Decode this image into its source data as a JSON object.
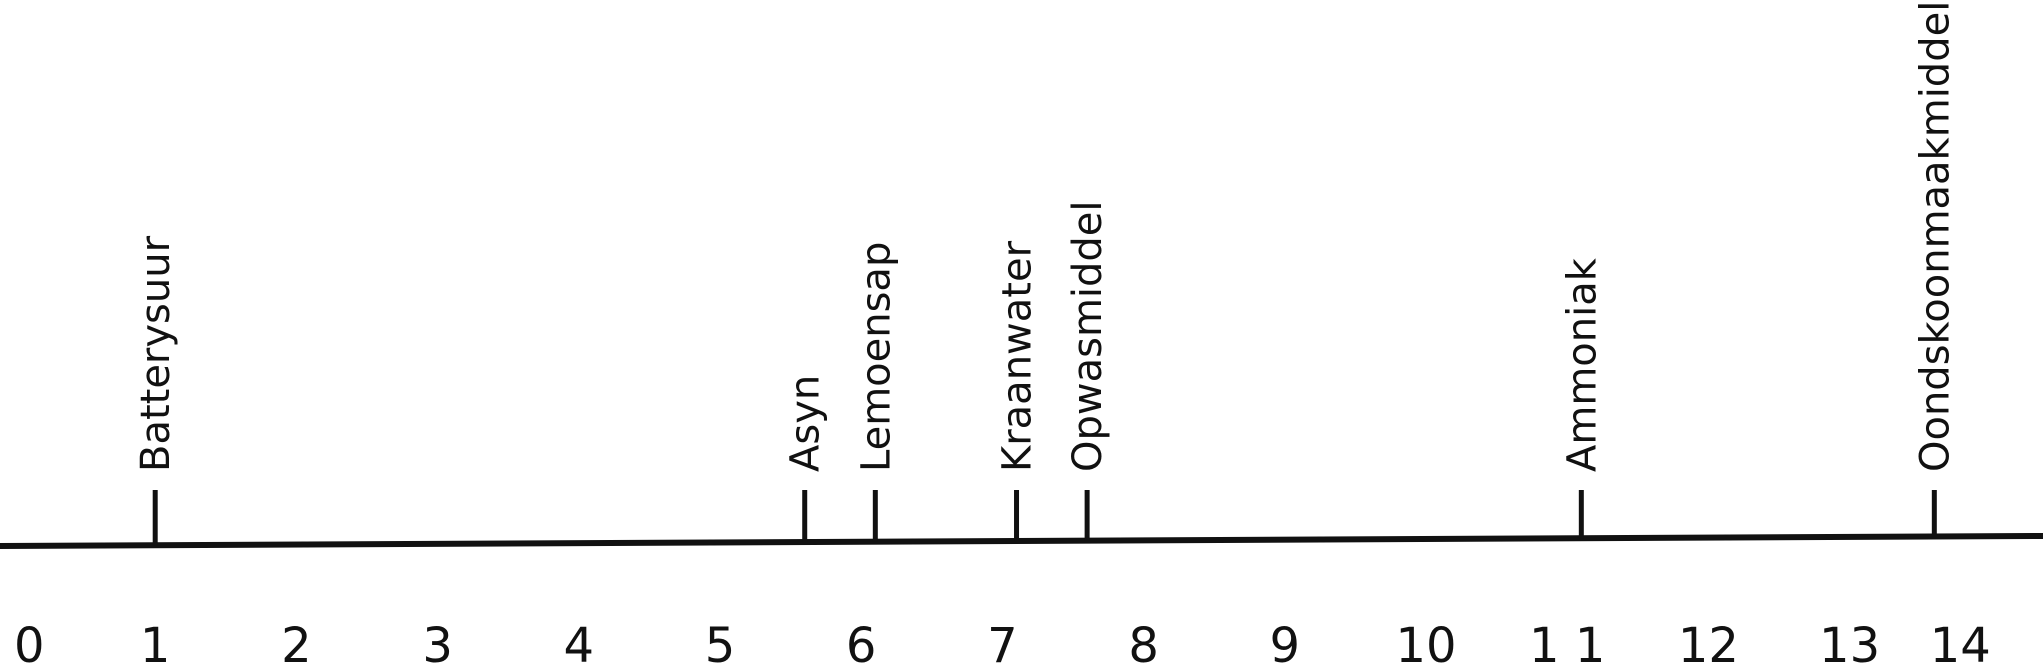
{
  "scale": {
    "min": 0,
    "max": 14,
    "ticks": [
      {
        "value": 0,
        "label": "0"
      },
      {
        "value": 1,
        "label": "1"
      },
      {
        "value": 2,
        "label": "2"
      },
      {
        "value": 3,
        "label": "3"
      },
      {
        "value": 4,
        "label": "4"
      },
      {
        "value": 5,
        "label": "5"
      },
      {
        "value": 6,
        "label": "6"
      },
      {
        "value": 7,
        "label": "7"
      },
      {
        "value": 8,
        "label": "8"
      },
      {
        "value": 9,
        "label": "9"
      },
      {
        "value": 10,
        "label": "10"
      },
      {
        "value": 11,
        "label": "1 1"
      },
      {
        "value": 12,
        "label": "12"
      },
      {
        "value": 13,
        "label": "13"
      },
      {
        "value": 14,
        "label": "14"
      }
    ]
  },
  "markers": [
    {
      "name": "batterysuur",
      "label": "Batterysuur",
      "value": 1.0
    },
    {
      "name": "asyn",
      "label": "Asyn",
      "value": 5.6
    },
    {
      "name": "lemoensap",
      "label": "Lemoensap",
      "value": 6.1
    },
    {
      "name": "kraanwater",
      "label": "Kraanwater",
      "value": 7.1
    },
    {
      "name": "opwasmiddel",
      "label": "Opwasmiddel",
      "value": 7.6
    },
    {
      "name": "ammoniak",
      "label": "Ammoniak",
      "value": 11.1
    },
    {
      "name": "oondskoonmaakmiddel",
      "label": "Oondskoonmaakmiddel",
      "value": 13.6
    }
  ]
}
